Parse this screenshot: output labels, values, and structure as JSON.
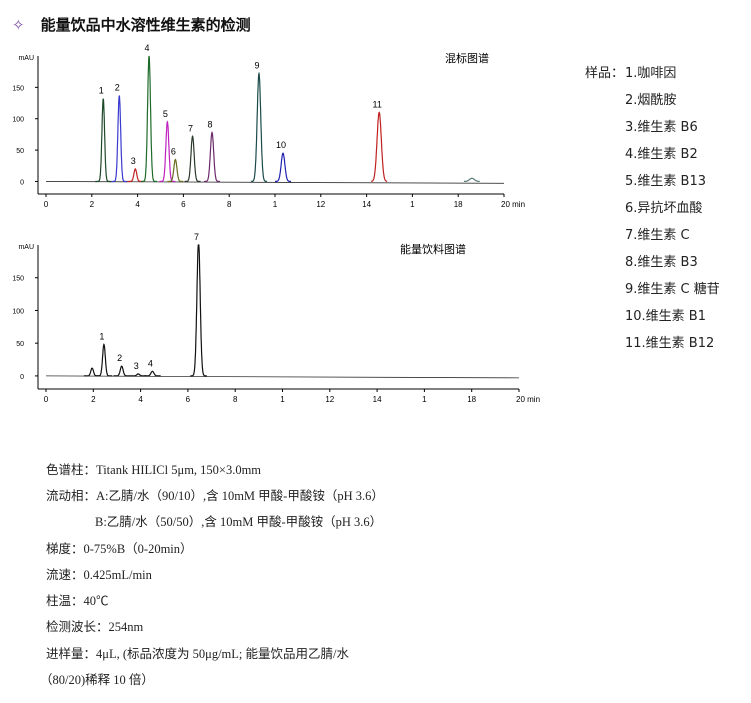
{
  "header": {
    "icon": "sparkle-icon",
    "title": "能量饮品中水溶性维生素的检测"
  },
  "chart_data": [
    {
      "type": "line",
      "title": "混标图谱",
      "ylabel": "mAU",
      "xunit": "min",
      "xlim": [
        0,
        20
      ],
      "ylim": [
        -20,
        200
      ],
      "xticks": [
        "0",
        "2",
        "4",
        "6",
        "8",
        "1",
        "12",
        "14",
        "1",
        "18",
        "20 min"
      ],
      "yticks": [
        "0",
        "50",
        "100",
        "150"
      ],
      "peaks": [
        {
          "label": "1",
          "time": 2.5,
          "height": 132,
          "color": "#1e4a2a"
        },
        {
          "label": "2",
          "time": 3.2,
          "height": 137,
          "color": "#3a3ad0"
        },
        {
          "label": "3",
          "time": 3.9,
          "height": 20,
          "color": "#c02020"
        },
        {
          "label": "4",
          "time": 4.5,
          "height": 200,
          "color": "#1e6a2a"
        },
        {
          "label": "5",
          "time": 5.3,
          "height": 95,
          "color": "#c020c0"
        },
        {
          "label": "6",
          "time": 5.65,
          "height": 35,
          "color": "#6a6a20"
        },
        {
          "label": "7",
          "time": 6.4,
          "height": 72,
          "color": "#2a3a2a"
        },
        {
          "label": "8",
          "time": 7.25,
          "height": 78,
          "color": "#6a2a6a"
        },
        {
          "label": "9",
          "time": 9.3,
          "height": 172,
          "color": "#1a4a4a"
        },
        {
          "label": "10",
          "time": 10.35,
          "height": 45,
          "color": "#2020b0"
        },
        {
          "label": "11",
          "time": 14.55,
          "height": 110,
          "color": "#c02020"
        },
        {
          "label": "",
          "time": 18.6,
          "height": 5,
          "color": "#5a7a7a"
        }
      ]
    },
    {
      "type": "line",
      "title": "能量饮料图谱",
      "ylabel": "mAU",
      "xunit": "min",
      "xlim": [
        0,
        20
      ],
      "ylim": [
        -20,
        200
      ],
      "xticks": [
        "0",
        "2",
        "4",
        "6",
        "8",
        "1",
        "12",
        "14",
        "1",
        "18",
        "20 min"
      ],
      "yticks": [
        "0",
        "50",
        "100",
        "150"
      ],
      "peaks": [
        {
          "label": "",
          "time": 1.95,
          "height": 12,
          "color": "#111"
        },
        {
          "label": "1",
          "time": 2.45,
          "height": 48,
          "color": "#111"
        },
        {
          "label": "2",
          "time": 3.2,
          "height": 15,
          "color": "#111"
        },
        {
          "label": "3",
          "time": 3.9,
          "height": 3,
          "color": "#111"
        },
        {
          "label": "4",
          "time": 4.5,
          "height": 7,
          "color": "#111"
        },
        {
          "label": "7",
          "time": 6.45,
          "height": 205,
          "color": "#111"
        }
      ]
    }
  ],
  "legend": {
    "head": "样品：",
    "items": [
      "1.咖啡因",
      "2.烟酰胺",
      "3.维生素 B6",
      "4.维生素 B2",
      "5.维生素 B13",
      "6.异抗坏血酸",
      "7.维生素 C",
      "8.维生素 B3",
      "9.维生素 C 糖苷",
      "10.维生素 B1",
      "11.维生素 B12"
    ]
  },
  "conditions": [
    "色谱柱：Titank HILICl 5μm, 150×3.0mm",
    "流动相：A:乙腈/水（90/10）,含 10mM 甲酸-甲酸铵（pH 3.6）",
    "B:乙腈/水（50/50）,含 10mM 甲酸-甲酸铵（pH 3.6）",
    "梯度：0-75%B（0-20min）",
    "流速：0.425mL/min",
    "柱温：40℃",
    "检测波长：254nm",
    "进样量：4μL, (标品浓度为 50μg/mL;  能量饮品用乙腈/水",
    "（80/20)稀释 10 倍）"
  ]
}
